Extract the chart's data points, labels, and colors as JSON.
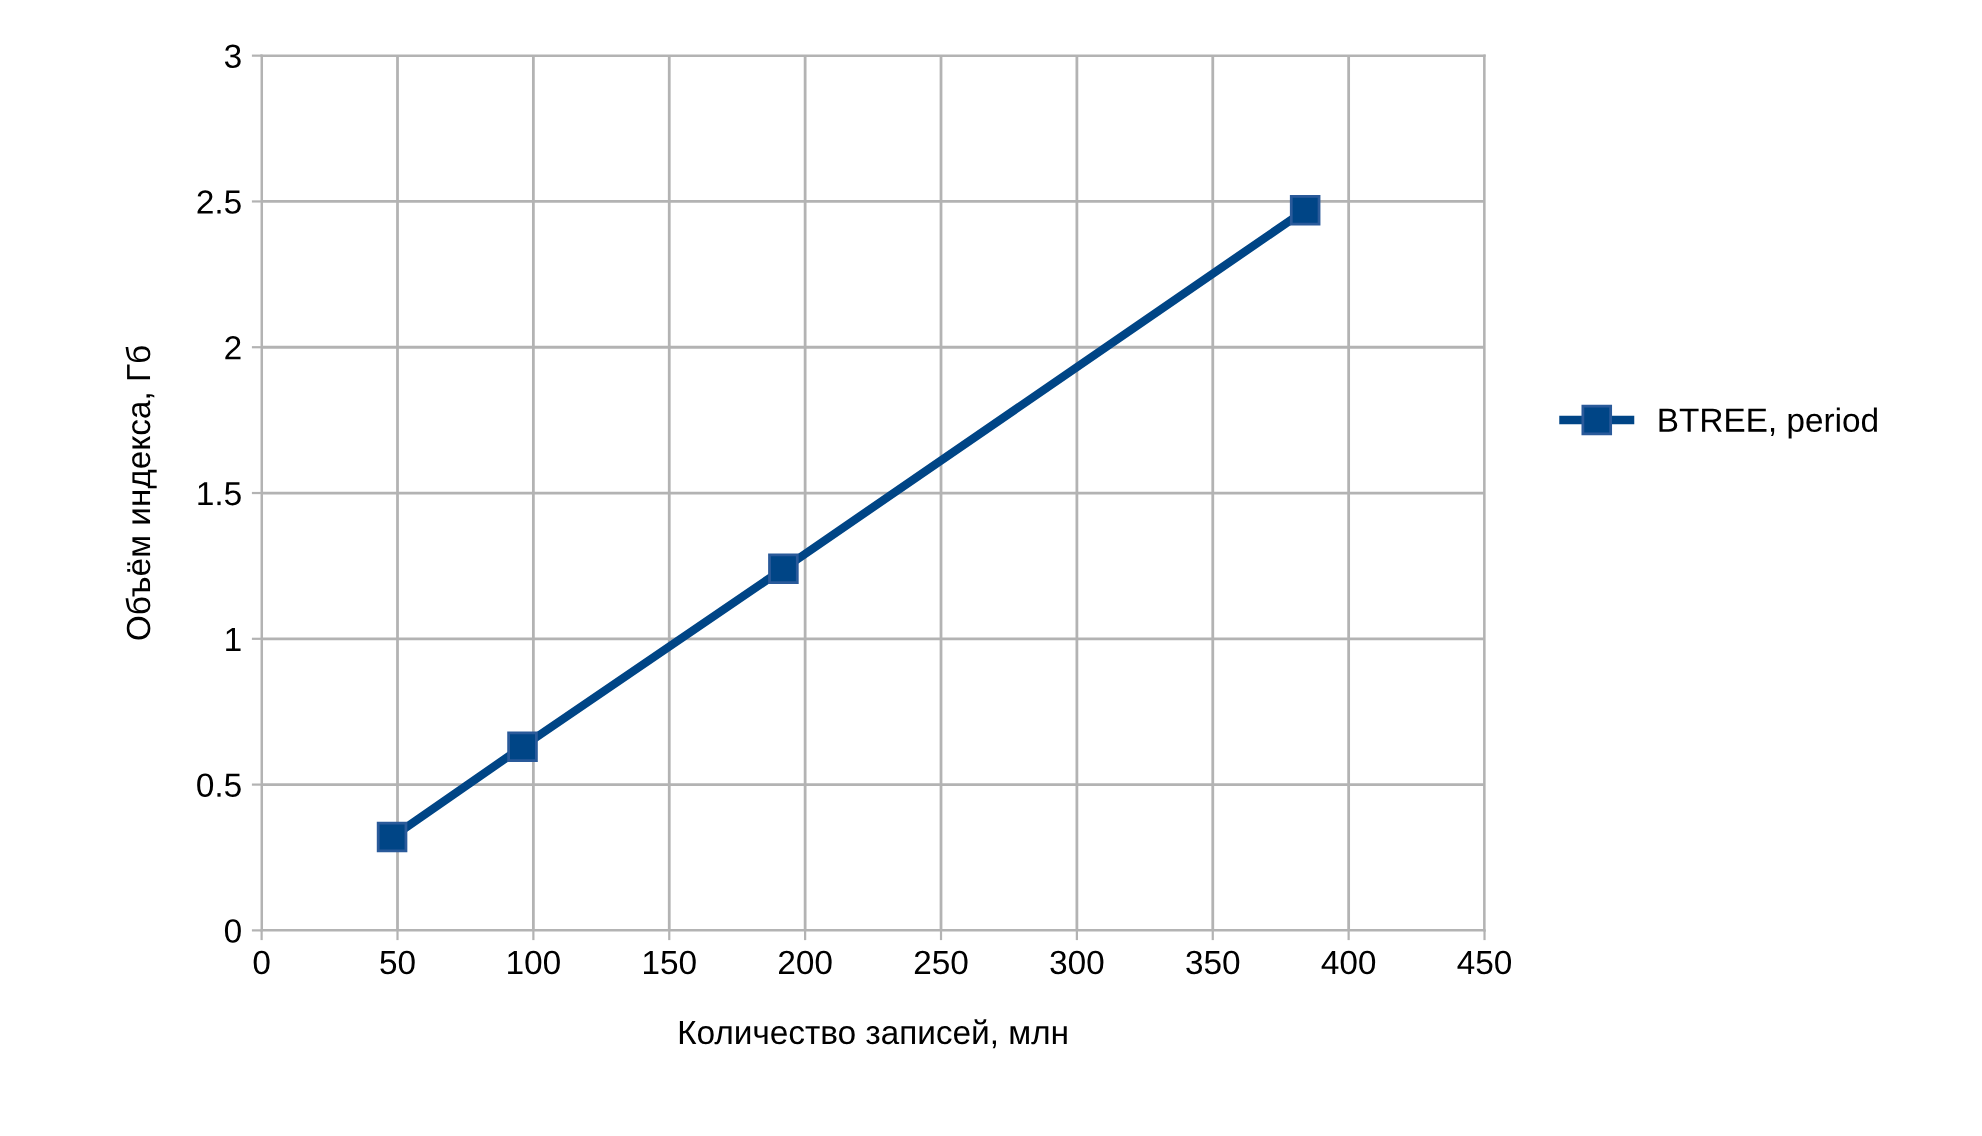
{
  "chart_data": {
    "type": "line",
    "xlabel": "Количество записей, млн",
    "ylabel": "Объём индекса, Гб",
    "series": [
      {
        "name": "BTREE, period",
        "color": "#004586",
        "x": [
          48,
          96,
          192,
          384
        ],
        "values": [
          0.32,
          0.63,
          1.24,
          2.47
        ]
      }
    ],
    "xlim": [
      0,
      450
    ],
    "xticks": [
      0,
      50,
      100,
      150,
      200,
      250,
      300,
      350,
      400,
      450
    ],
    "ylim": [
      0,
      3
    ],
    "yticks": [
      0,
      0.5,
      1,
      1.5,
      2,
      2.5,
      3
    ],
    "grid": true,
    "legend": "right",
    "marker": "square",
    "line_style": "solid"
  }
}
